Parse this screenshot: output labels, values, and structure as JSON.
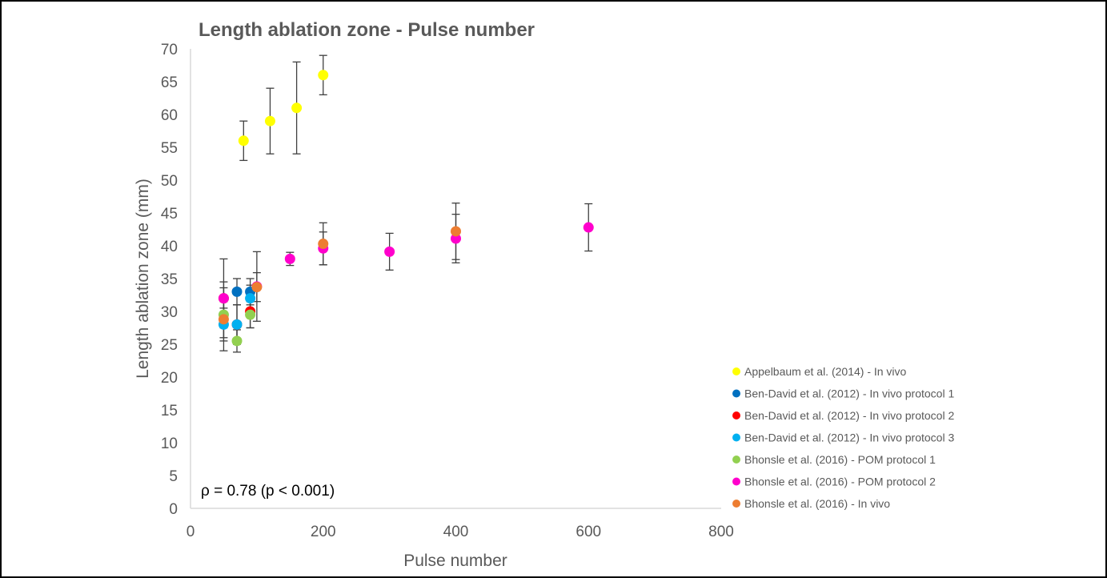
{
  "chart_data": {
    "type": "scatter",
    "title": "Length ablation zone - Pulse number",
    "xlabel": "Pulse number",
    "ylabel": "Length ablation zone (mm)",
    "xlim": [
      0,
      800
    ],
    "ylim": [
      0,
      70
    ],
    "x_ticks": [
      "0",
      "200",
      "400",
      "600",
      "800"
    ],
    "y_ticks": [
      "0",
      "5",
      "10",
      "15",
      "20",
      "25",
      "30",
      "35",
      "40",
      "45",
      "50",
      "55",
      "60",
      "65",
      "70"
    ],
    "grid": false,
    "legend_position": "right",
    "annotation": "ρ = 0.78 (p < 0.001)",
    "series": [
      {
        "name": "Appelbaum et al. (2014) - In vivo",
        "color": "#FFFF00",
        "points": [
          {
            "x": 80,
            "y": 56,
            "err": 3
          },
          {
            "x": 120,
            "y": 59,
            "err": 5
          },
          {
            "x": 160,
            "y": 61,
            "err": 7
          },
          {
            "x": 200,
            "y": 66,
            "err": 3
          }
        ]
      },
      {
        "name": "Ben-David et al. (2012) - In vivo protocol 1",
        "color": "#0070C0",
        "points": [
          {
            "x": 70,
            "y": 33,
            "err": 2
          },
          {
            "x": 90,
            "y": 33,
            "err": 2
          }
        ]
      },
      {
        "name": "Ben-David et al. (2012) - In vivo protocol 2",
        "color": "#FF0000",
        "points": [
          {
            "x": 50,
            "y": 32,
            "err": 2.5
          },
          {
            "x": 70,
            "y": 28,
            "err": 3
          },
          {
            "x": 90,
            "y": 30,
            "err": 2.5
          }
        ]
      },
      {
        "name": "Ben-David et al. (2012) - In vivo protocol 3",
        "color": "#00B0F0",
        "points": [
          {
            "x": 50,
            "y": 28,
            "err": 2.5
          },
          {
            "x": 70,
            "y": 28,
            "err": 3
          },
          {
            "x": 90,
            "y": 32,
            "err": 2
          }
        ]
      },
      {
        "name": "Bhonsle et al. (2016) - POM protocol 1",
        "color": "#92D050",
        "points": [
          {
            "x": 50,
            "y": 29.5,
            "err": 2
          },
          {
            "x": 70,
            "y": 25.5,
            "err": 1.7
          },
          {
            "x": 90,
            "y": 29.5,
            "err": 2
          }
        ]
      },
      {
        "name": "Bhonsle et al. (2016) - POM protocol 2",
        "color": "#FF00CC",
        "points": [
          {
            "x": 50,
            "y": 32,
            "err": 6
          },
          {
            "x": 100,
            "y": 33.8,
            "err": 5.3
          },
          {
            "x": 150,
            "y": 38,
            "err": 1
          },
          {
            "x": 200,
            "y": 39.6,
            "err": 2.5
          },
          {
            "x": 300,
            "y": 39.1,
            "err": 2.8
          },
          {
            "x": 400,
            "y": 41.1,
            "err": 3.7
          },
          {
            "x": 600,
            "y": 42.8,
            "err": 3.6
          }
        ]
      },
      {
        "name": "Bhonsle et al. (2016) - In vivo",
        "color": "#ED7D31",
        "points": [
          {
            "x": 50,
            "y": 28.8,
            "err": 4.8
          },
          {
            "x": 100,
            "y": 33.7,
            "err": 2.2
          },
          {
            "x": 200,
            "y": 40.3,
            "err": 3.2
          },
          {
            "x": 400,
            "y": 42.2,
            "err": 4.3
          }
        ]
      }
    ]
  }
}
